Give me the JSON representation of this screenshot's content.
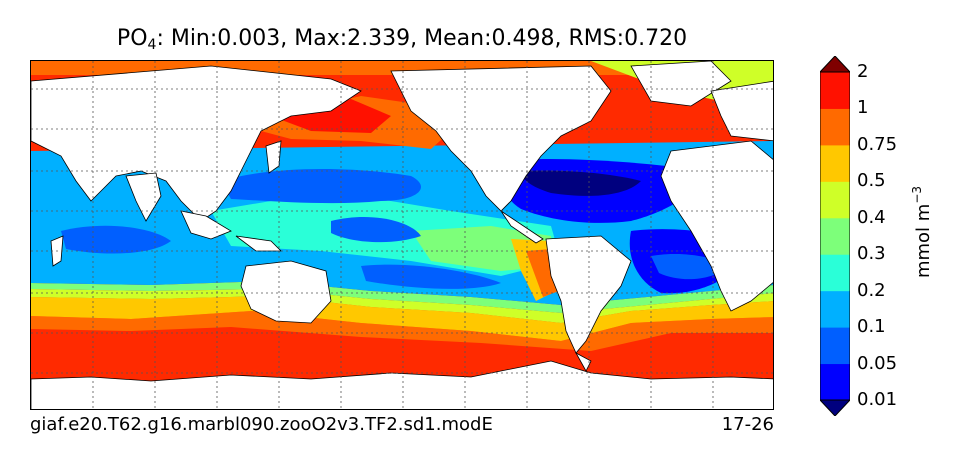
{
  "title": {
    "variable": "PO",
    "variable_subscript": "4",
    "stats": ": Min:0.003, Max:2.339, Mean:0.498, RMS:0.720"
  },
  "case_name": "giaf.e20.T62.g16.marbl090.zooO2v3.TF2.sd1.modE",
  "years": "17-26",
  "colorbar": {
    "units_base": "mmol m",
    "units_exp": "−3",
    "levels": [
      "0.01",
      "0.05",
      "0.1",
      "0.2",
      "0.3",
      "0.4",
      "0.5",
      "0.75",
      "1",
      "2"
    ],
    "colors": [
      "#00007f",
      "#0000ff",
      "#005fff",
      "#00b0ff",
      "#2affd8",
      "#7dff7a",
      "#cfff28",
      "#ffc800",
      "#ff6a00",
      "#ff1100",
      "#7f0000"
    ]
  }
}
